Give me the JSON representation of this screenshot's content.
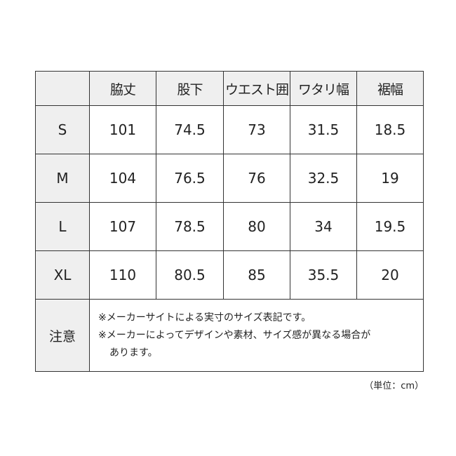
{
  "headers": [
    "",
    "脇丈",
    "股下",
    "ウエスト囲",
    "ワタリ幅",
    "裾幅"
  ],
  "rows": [
    {
      "size": "S",
      "values": [
        "101",
        "74.5",
        "73",
        "31.5",
        "18.5"
      ]
    },
    {
      "size": "M",
      "values": [
        "104",
        "76.5",
        "76",
        "32.5",
        "19"
      ]
    },
    {
      "size": "L",
      "values": [
        "107",
        "78.5",
        "80",
        "34",
        "19.5"
      ]
    },
    {
      "size": "XL",
      "values": [
        "110",
        "80.5",
        "85",
        "35.5",
        "20"
      ]
    }
  ],
  "notes": {
    "label": "注意",
    "lines": [
      "※メーカーサイトによる実寸のサイズ表記です。",
      "※メーカーによってデザインや素材、サイズ感が異なる場合が",
      "あります。"
    ]
  },
  "unit": "（単位：cm）"
}
